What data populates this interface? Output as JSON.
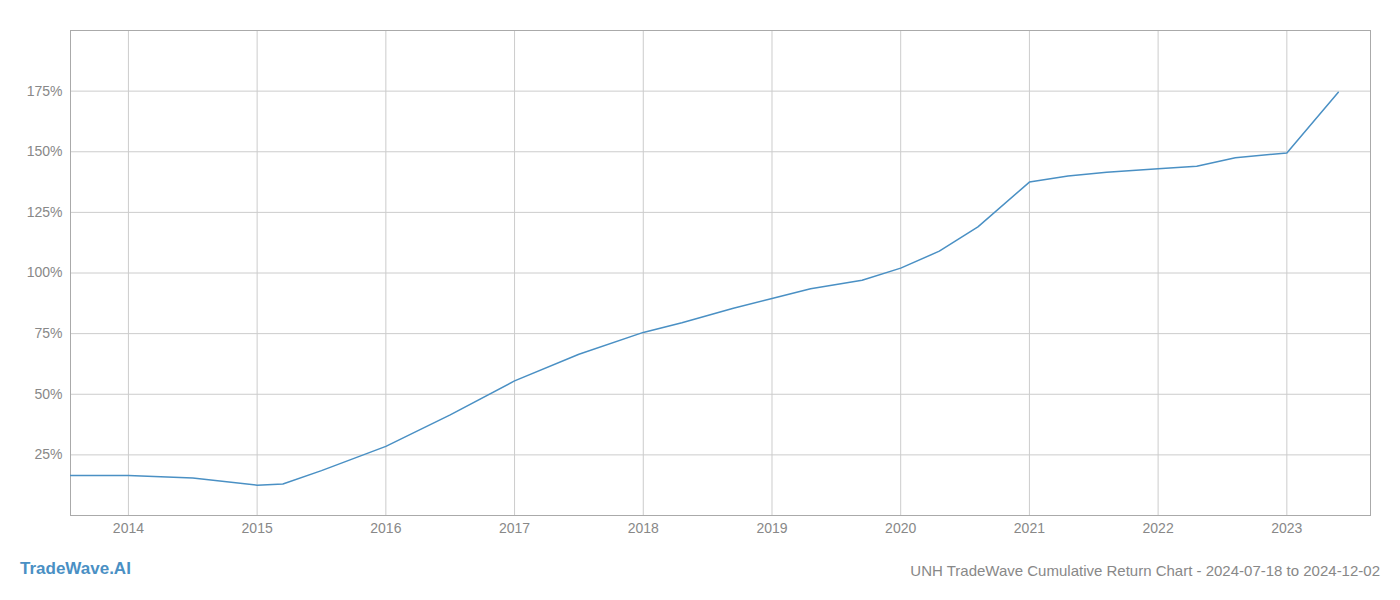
{
  "chart_data": {
    "type": "line",
    "title": "UNH TradeWave Cumulative Return Chart - 2024-07-18 to 2024-12-02",
    "annotations": [
      "TradeWave.AI"
    ],
    "color": "#4a90c4",
    "grid": true,
    "x": [
      2013.55,
      2014.0,
      2014.5,
      2015.0,
      2015.2,
      2015.5,
      2016.0,
      2016.5,
      2017.0,
      2017.5,
      2018.0,
      2018.3,
      2018.7,
      2019.0,
      2019.3,
      2019.7,
      2020.0,
      2020.3,
      2020.6,
      2021.0,
      2021.3,
      2021.6,
      2022.0,
      2022.3,
      2022.6,
      2023.0,
      2023.4
    ],
    "values": [
      0.165,
      0.165,
      0.155,
      0.125,
      0.13,
      0.185,
      0.285,
      0.415,
      0.555,
      0.665,
      0.755,
      0.795,
      0.855,
      0.895,
      0.935,
      0.97,
      1.02,
      1.09,
      1.19,
      1.375,
      1.4,
      1.415,
      1.43,
      1.44,
      1.475,
      1.495,
      1.745
    ],
    "xlim": [
      2013.55,
      2023.65
    ],
    "xticks": [
      2014,
      2015,
      2016,
      2017,
      2018,
      2019,
      2020,
      2021,
      2022,
      2023
    ],
    "ylim": [
      0.0,
      2.0
    ],
    "yticks": [
      {
        "value": 0.25,
        "label": "25%"
      },
      {
        "value": 0.5,
        "label": "50%"
      },
      {
        "value": 0.75,
        "label": "75%"
      },
      {
        "value": 1.0,
        "label": "100%"
      },
      {
        "value": 1.25,
        "label": "125%"
      },
      {
        "value": 1.5,
        "label": "150%"
      },
      {
        "value": 1.75,
        "label": "175%"
      }
    ]
  }
}
